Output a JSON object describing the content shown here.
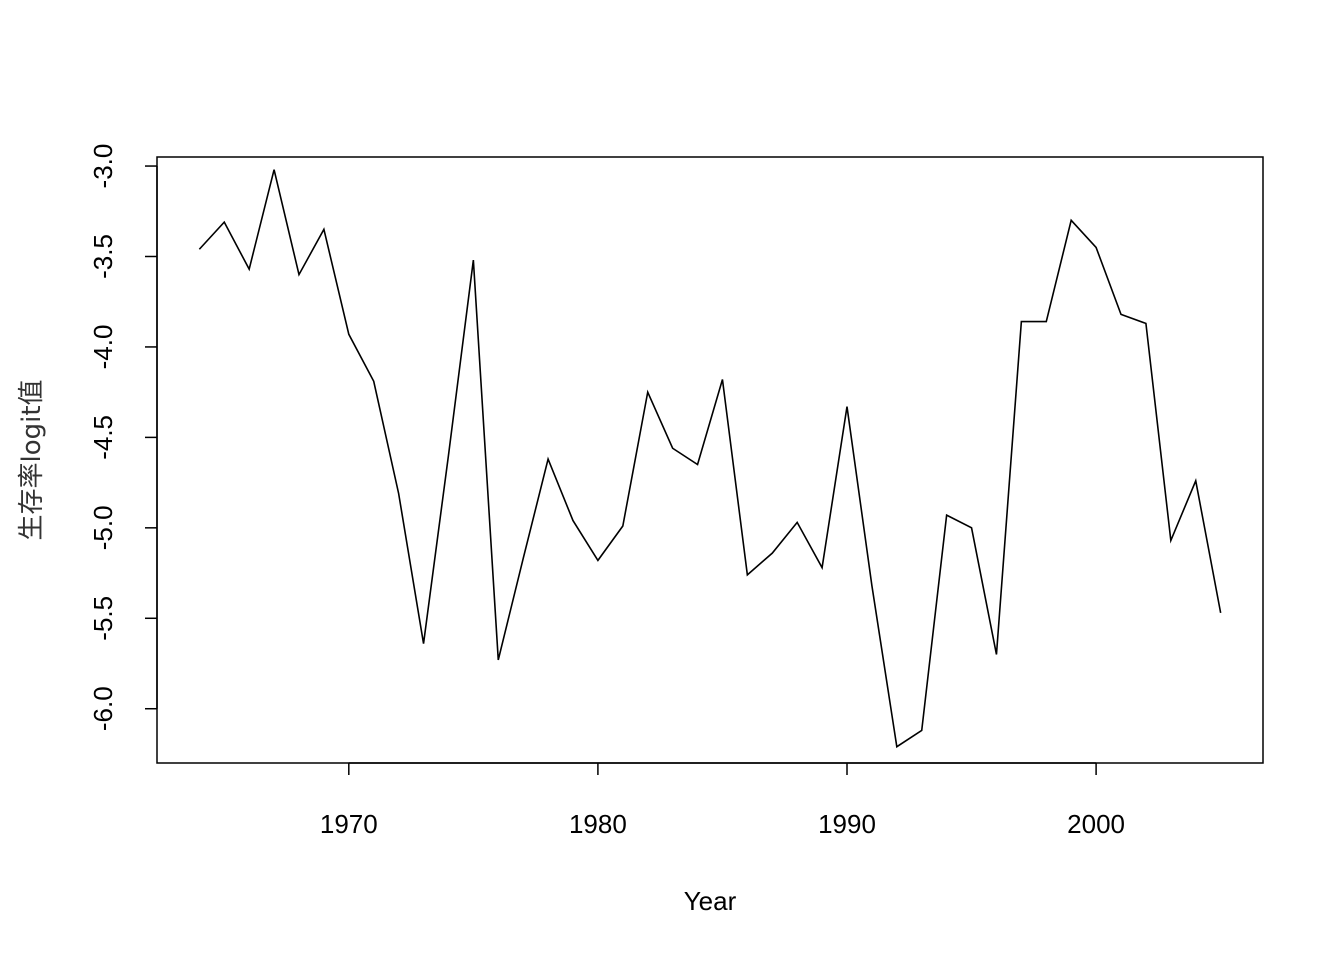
{
  "chart_data": {
    "type": "line",
    "title": "",
    "xlabel": "Year",
    "ylabel": "生存率logit值",
    "xlim": [
      1962.3,
      2006.7
    ],
    "ylim": [
      -6.3,
      -2.95
    ],
    "xticks": [
      1970,
      1980,
      1990,
      2000
    ],
    "xtick_labels": [
      "1970",
      "1980",
      "1990",
      "2000"
    ],
    "yticks": [
      -3.0,
      -3.5,
      -4.0,
      -4.5,
      -5.0,
      -5.5,
      -6.0
    ],
    "ytick_labels": [
      "-3.0",
      "-3.5",
      "-4.0",
      "-4.5",
      "-5.0",
      "-5.5",
      "-6.0"
    ],
    "grid": false,
    "legend": "none",
    "line_color": "#000000",
    "x": [
      1964,
      1965,
      1966,
      1967,
      1968,
      1969,
      1970,
      1971,
      1972,
      1973,
      1974,
      1975,
      1976,
      1977,
      1978,
      1979,
      1980,
      1981,
      1982,
      1983,
      1984,
      1985,
      1986,
      1987,
      1988,
      1989,
      1990,
      1991,
      1992,
      1993,
      1994,
      1995,
      1996,
      1997,
      1998,
      1999,
      2000,
      2001,
      2002,
      2003,
      2004,
      2005
    ],
    "y": [
      -3.46,
      -3.31,
      -3.57,
      -3.02,
      -3.6,
      -3.35,
      -3.93,
      -4.19,
      -4.81,
      -5.64,
      -4.6,
      -3.52,
      -5.73,
      -5.17,
      -4.62,
      -4.96,
      -5.18,
      -4.99,
      -4.25,
      -4.56,
      -4.65,
      -4.18,
      -5.26,
      -5.14,
      -4.97,
      -5.22,
      -4.33,
      -5.32,
      -6.21,
      -6.12,
      -4.93,
      -5.0,
      -5.7,
      -3.86,
      -3.86,
      -3.3,
      -3.45,
      -3.82,
      -3.87,
      -5.07,
      -4.74,
      -5.47
    ]
  }
}
